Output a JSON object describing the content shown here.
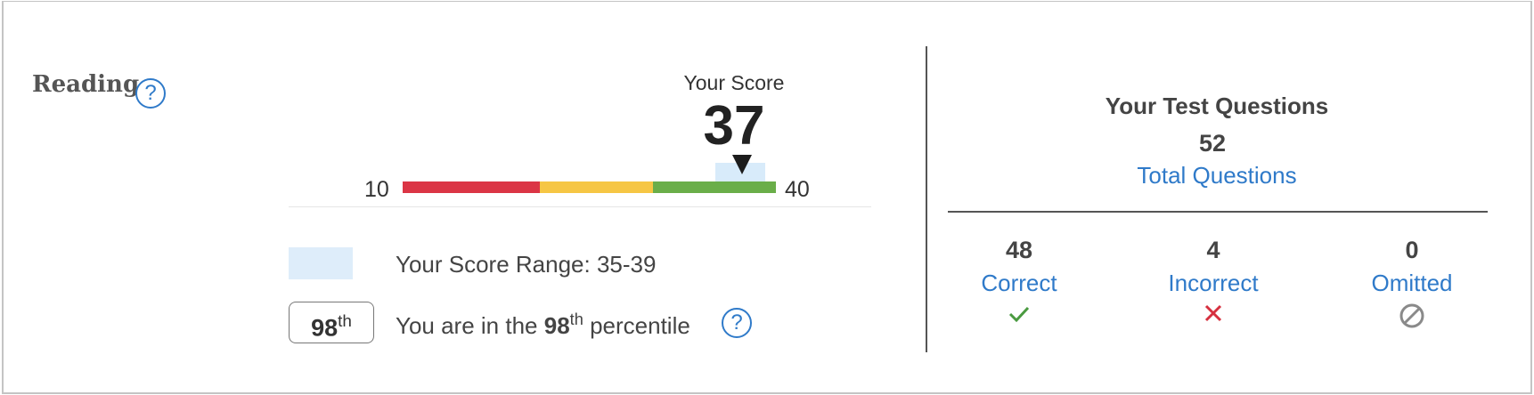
{
  "section": {
    "title": "Reading",
    "help": "?"
  },
  "score": {
    "label": "Your Score",
    "value": "37",
    "scale_min": "10",
    "scale_max": "40",
    "range_text": "Your Score Range: 35-39"
  },
  "percentile": {
    "badge_num": "98",
    "badge_sup": "th",
    "text_before": "You are in the",
    "num": "98",
    "sup": "th",
    "text_after": "percentile",
    "help": "?"
  },
  "test_questions": {
    "title": "Your Test Questions",
    "total": "52",
    "total_label": "Total Questions",
    "stats": [
      {
        "value": "48",
        "label": "Correct",
        "icon": "check-icon"
      },
      {
        "value": "4",
        "label": "Incorrect",
        "icon": "x-icon"
      },
      {
        "value": "0",
        "label": "Omitted",
        "icon": "ban-icon"
      }
    ]
  },
  "colors": {
    "accent": "#2f7ac9",
    "bar_red": "#db3545",
    "bar_yellow": "#f6c644",
    "bar_green": "#6aae49",
    "range_band": "#d8ebfa",
    "correct": "#4a9a40",
    "incorrect": "#d6303f"
  }
}
